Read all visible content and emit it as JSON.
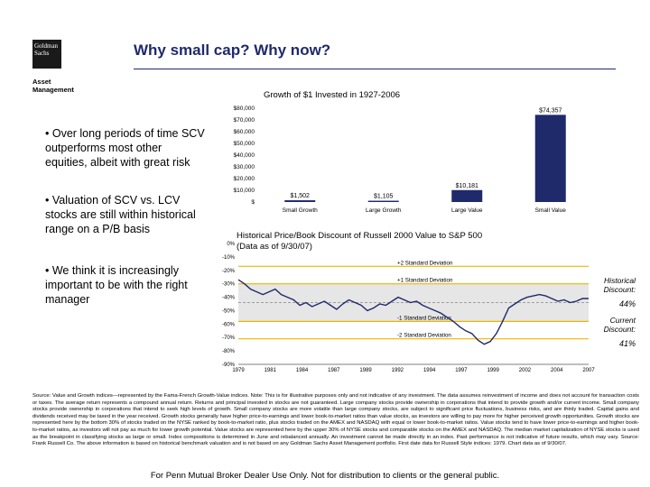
{
  "logo": {
    "line1": "Goldman",
    "line2": "Sachs",
    "sub_line1": "Asset",
    "sub_line2": "Management"
  },
  "page_title": "Why small cap?  Why now?",
  "bullets": [
    "• Over long periods of time SCV outperforms most other equities, albeit with great risk",
    "• Valuation of SCV vs. LCV stocks are still within historical range on a P/B basis",
    "• We think it is increasingly important to be with the right manager"
  ],
  "side_labels": {
    "historical_label": "Historical Discount:",
    "historical_value": "44%",
    "current_label": "Current Discount:",
    "current_value": "41%"
  },
  "source_text": "Source: Value and Growth indices—represented by the Fama-French Growth-Value indices. Note: This is for illustrative purposes only and not indicative of any investment. The data assumes reinvestment of income and does not account for transaction costs or taxes. The average return represents a compound annual return. Returns and principal invested in stocks are not guaranteed. Large company stocks provide ownership in corporations that intend to provide growth and/or current income. Small company stocks provide ownership in corporations that intend to seek high levels of growth. Small company stocks are more volatile than large company stocks, are subject to significant price fluctuations, business risks, and are thinly traded. Capital gains and dividends received may be taxed in the year received. Growth stocks generally have higher price-to-earnings and lower book-to-market ratios than value stocks, as investors are willing to pay more for higher perceived growth opportunities. Growth stocks are represented here by the bottom 30% of stocks traded on the NYSE ranked by book-to-market ratio, plus stocks traded on the AMEX and NASDAQ with equal or lower book-to-market ratios. Value stocks tend to have lower price-to-earnings and higher book-to-market ratios, as investors will not pay as much for lower growth potential. Value stocks are represented here by the upper 30% of NYSE stocks and comparable stocks on the AMEX and NASDAQ. The median market capitalization of NYSE stocks is used as the breakpoint in classifying stocks as large or small. Index compositions is determined in June and rebalanced annually. An investment cannot be made directly in an index. Past performance is not indicative of future results, which may vary. Source: Frank Russell Co. The above information is based on historical benchmark valuation and is not based on any Goldman Sachs Asset Management portfolio. First date data for Russell Style indices: 1979. Chart data as of 9/30/07.",
  "footer": "For Penn Mutual Broker Dealer Use Only.  Not for distribution to clients or the general public.",
  "chart_data": [
    {
      "type": "bar",
      "title": "Growth of $1 Invested in 1927-2006",
      "categories": [
        "Small Growth",
        "Large Growth",
        "Large Value",
        "Small Value"
      ],
      "values": [
        1502,
        1105,
        10181,
        74357
      ],
      "data_labels": [
        "$1,502",
        "$1,105",
        "$10,181",
        "$74,357"
      ],
      "y_ticks": [
        "$80,000",
        "$70,000",
        "$60,000",
        "$50,000",
        "$40,000",
        "$30,000",
        "$20,000",
        "$10,000",
        "$"
      ],
      "ylim": [
        0,
        80000
      ],
      "bar_color": "#1f2a6b",
      "grid": false
    },
    {
      "type": "line",
      "title": "Historical Price/Book Discount of Russell 2000 Value to S&P 500",
      "subtitle": "(Data as of 9/30/07)",
      "x": [
        1979,
        1979.5,
        1980,
        1980.5,
        1981,
        1981.5,
        1982,
        1982.5,
        1983,
        1983.5,
        1984,
        1984.5,
        1985,
        1985.5,
        1986,
        1986.5,
        1987,
        1987.5,
        1988,
        1988.5,
        1989,
        1989.5,
        1990,
        1990.5,
        1991,
        1991.5,
        1992,
        1992.5,
        1993,
        1993.5,
        1994,
        1994.5,
        1995,
        1995.5,
        1996,
        1996.5,
        1997,
        1997.5,
        1998,
        1998.5,
        1999,
        1999.5,
        2000,
        2000.5,
        2001,
        2001.5,
        2002,
        2002.5,
        2003,
        2003.5,
        2004,
        2004.5,
        2005,
        2005.5,
        2006,
        2006.5,
        2007,
        2007.5
      ],
      "y": [
        -27,
        -30,
        -34,
        -36,
        -38,
        -36,
        -34,
        -38,
        -40,
        -42,
        -46,
        -44,
        -47,
        -45,
        -43,
        -46,
        -49,
        -45,
        -42,
        -44,
        -46,
        -50,
        -48,
        -45,
        -46,
        -43,
        -40,
        -42,
        -44,
        -43,
        -46,
        -48,
        -50,
        -52,
        -55,
        -58,
        -62,
        -65,
        -67,
        -72,
        -75,
        -73,
        -67,
        -58,
        -48,
        -45,
        -42,
        -40,
        -39,
        -38,
        -39,
        -41,
        -43,
        -42,
        -44,
        -43,
        -41,
        -41
      ],
      "y_ticks": [
        "0%",
        "-10%",
        "-20%",
        "-30%",
        "-40%",
        "-50%",
        "-60%",
        "-70%",
        "-80%",
        "-90%"
      ],
      "ylim": [
        -90,
        0
      ],
      "x_ticks": [
        "1979",
        "1981",
        "1984",
        "1987",
        "1989",
        "1992",
        "1994",
        "1997",
        "1999",
        "2002",
        "2004",
        "2007"
      ],
      "mean": -44,
      "std_lines": [
        {
          "label": "+2 Standard Deviation",
          "value": -17,
          "color": "#f0b400"
        },
        {
          "label": "+1 Standard Deviation",
          "value": -30,
          "color": "#f0b400"
        },
        {
          "label": "-1 Standard Deviation",
          "value": -58,
          "color": "#f0b400"
        },
        {
          "label": "-2 Standard Deviation",
          "value": -71,
          "color": "#f0b400"
        }
      ],
      "band_color": "#e6e6e6",
      "line_color": "#1f2a6b"
    }
  ]
}
